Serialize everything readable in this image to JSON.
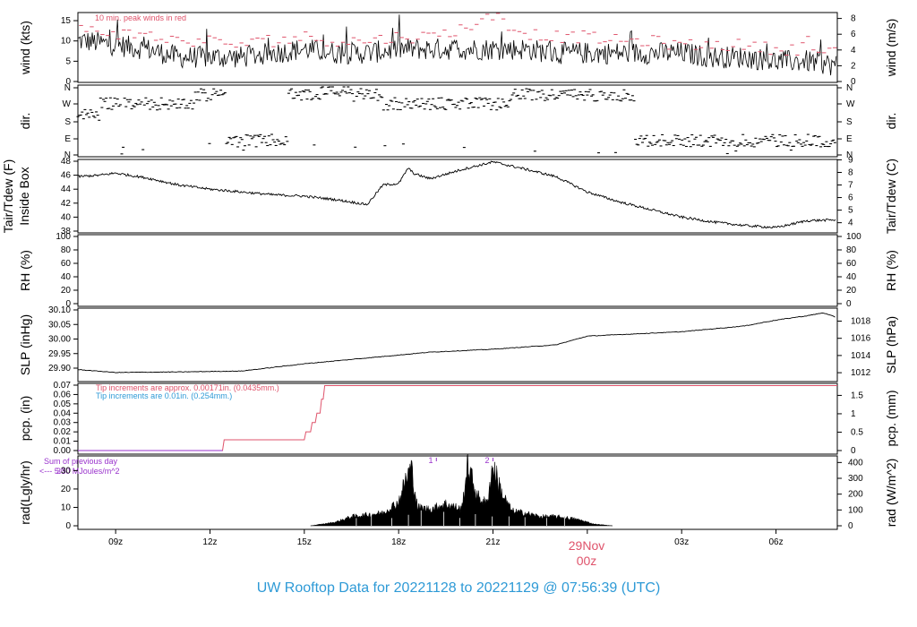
{
  "title": "UW Rooftop Data for 20221128  to  20221129 @ 07:56:39  (UTC)",
  "x_axis": {
    "ticks": [
      "09z",
      "12z",
      "15z",
      "18z",
      "21z",
      "00z",
      "03z",
      "06z"
    ],
    "date_label": "29Nov",
    "date_tick": "00z",
    "date_color": "#df536b"
  },
  "panels": {
    "wind": {
      "left_label": "wind (kts)",
      "right_label": "wind (m/s)",
      "note": "10 min. peak winds in red",
      "left_ticks": [
        "0",
        "5",
        "10",
        "15"
      ],
      "right_ticks": [
        "0",
        "2",
        "4",
        "6",
        "8"
      ]
    },
    "dir": {
      "left_label": "dir.",
      "right_label": "dir.",
      "ticks": [
        "N",
        "E",
        "S",
        "W",
        "N"
      ]
    },
    "temp": {
      "left_label_1": "Tair/Tdew (F)",
      "left_label_2": "Inside Box",
      "right_label": "Tair/Tdew (C)",
      "left_ticks": [
        "38",
        "40",
        "42",
        "44",
        "46",
        "48"
      ],
      "right_ticks": [
        "4",
        "5",
        "6",
        "7",
        "8",
        "9"
      ]
    },
    "rh": {
      "left_label": "RH (%)",
      "right_label": "RH (%)",
      "ticks": [
        "0",
        "20",
        "40",
        "60",
        "80",
        "100"
      ]
    },
    "slp": {
      "left_label": "SLP (inHg)",
      "right_label": "SLP (hPa)",
      "left_ticks": [
        "29.90",
        "29.95",
        "30.00",
        "30.05",
        "30.10"
      ],
      "right_ticks": [
        "1012",
        "1014",
        "1016",
        "1018"
      ]
    },
    "pcp": {
      "left_label": "pcp. (in)",
      "right_label": "pcp. (mm)",
      "note1": "Tip increments are approx. 0.00171in. (0.0435mm.)",
      "note2": "Tip increments are 0.01in. (0.254mm.)",
      "left_ticks": [
        "0.00",
        "0.01",
        "0.02",
        "0.03",
        "0.04",
        "0.05",
        "0.06",
        "0.07"
      ],
      "right_ticks": [
        "0",
        "0.5",
        "1",
        "1.5"
      ]
    },
    "rad": {
      "left_label": "rad(Lgly/hr)",
      "right_label": "rad (W/m^2)",
      "note1": "Sum of previous day",
      "note2": "<--- 5.30 MJoules/m^2",
      "note_overlap": "30",
      "left_ticks": [
        "0",
        "10",
        "20",
        "30"
      ],
      "right_ticks": [
        "0",
        "100",
        "200",
        "300",
        "400"
      ],
      "marker_1": "1",
      "marker_2": "2"
    }
  },
  "colors": {
    "line": "#000000",
    "peak_wind": "#df536b",
    "pcp_approx": "#df536b",
    "pcp_tip": "#2e9ad6",
    "rad_note": "#9932cc",
    "title": "#2e9ad6"
  },
  "chart_data": [
    {
      "type": "line",
      "title": "",
      "ylabel": "wind (kts)",
      "x_range_hours_utc": [
        7.8,
        31.95
      ],
      "ylim": [
        0,
        17
      ],
      "series": [
        {
          "name": "",
          "x": [
            8,
            9,
            10,
            11,
            12,
            13,
            14,
            15,
            16,
            17,
            18,
            19,
            20,
            21,
            22,
            23,
            24,
            25,
            26,
            27,
            28,
            29,
            30,
            31,
            31.9
          ],
          "values": [
            10,
            9,
            8,
            6,
            6,
            6,
            7,
            8,
            7,
            7,
            8,
            8,
            8,
            8,
            8,
            7,
            7,
            7,
            7,
            7,
            6,
            6,
            5,
            5,
            4
          ]
        },
        {
          "name": "10 min. peak winds in red",
          "x": [
            8,
            9,
            10,
            11,
            12,
            13,
            14,
            15,
            16,
            17,
            18,
            19,
            20,
            21,
            22,
            23,
            24,
            25,
            26,
            27,
            28,
            29,
            30,
            31,
            31.9
          ],
          "values": [
            13,
            12,
            11,
            10,
            10,
            9,
            10,
            11,
            10,
            10,
            11,
            11,
            13,
            16,
            12,
            11,
            11,
            10,
            10,
            9,
            9,
            9,
            8,
            8,
            7
          ]
        }
      ]
    },
    {
      "type": "scatter",
      "ylabel": "dir.",
      "ylim": [
        "N",
        "E",
        "S",
        "W",
        "N"
      ],
      "series": [
        {
          "name": "",
          "x": [
            8,
            9,
            10,
            11,
            12,
            13,
            14,
            15,
            16,
            17,
            18,
            19,
            20,
            21,
            22,
            23,
            24,
            25,
            26,
            27,
            28,
            29,
            30,
            31
          ],
          "values": [
            "SW",
            "W",
            "W",
            "W",
            "NW",
            "E",
            "E",
            "NW",
            "N",
            "NW",
            "W",
            "W",
            "W",
            "W",
            "NW",
            "NW",
            "NW",
            "NW",
            "E",
            "E",
            "E",
            "E",
            "E",
            "E"
          ]
        }
      ]
    },
    {
      "type": "line",
      "ylabel": "Tair/Tdew (F)",
      "ylim": [
        38,
        48
      ],
      "series": [
        {
          "name": "",
          "x": [
            7.8,
            8.5,
            9,
            10,
            11,
            12,
            13,
            14,
            15,
            16,
            17,
            17.5,
            18,
            18.3,
            18.5,
            19,
            20,
            21,
            22,
            23,
            24,
            25,
            26,
            27,
            28,
            29,
            30,
            31,
            31.9
          ],
          "values": [
            45.8,
            46.0,
            46.3,
            45.6,
            44.6,
            44.0,
            43.6,
            43.2,
            43.0,
            42.5,
            41.8,
            44.6,
            44.8,
            47.0,
            46.2,
            45.5,
            46.8,
            47.9,
            46.9,
            45.8,
            43.6,
            42.2,
            41.1,
            40.0,
            39.3,
            38.8,
            38.5,
            39.5,
            39.6
          ]
        }
      ]
    },
    {
      "type": "line",
      "ylabel": "RH (%)",
      "ylim": [
        0,
        100
      ],
      "series": []
    },
    {
      "type": "line",
      "ylabel": "SLP (inHg)",
      "ylim": [
        29.87,
        30.11
      ],
      "series": [
        {
          "name": "",
          "x": [
            7.8,
            9,
            11,
            13,
            15,
            17,
            19,
            21,
            23,
            24,
            25,
            27,
            29,
            30,
            31,
            31.5,
            31.9
          ],
          "values": [
            29.895,
            29.885,
            29.887,
            29.89,
            29.915,
            29.935,
            29.955,
            29.965,
            29.98,
            30.01,
            30.015,
            30.025,
            30.045,
            30.065,
            30.08,
            30.09,
            30.075
          ]
        }
      ]
    },
    {
      "type": "line",
      "ylabel": "pcp. (in)",
      "ylim": [
        0,
        0.07
      ],
      "series": [
        {
          "name": "Tip increments are approx. 0.00171in. (0.0435mm.)",
          "x": [
            7.8,
            12.4,
            12.45,
            15,
            15.05,
            15.2,
            15.25,
            15.35,
            15.4,
            15.5,
            15.55,
            15.6,
            15.65,
            31.95
          ],
          "values": [
            0,
            0,
            0.0115,
            0.0115,
            0.02,
            0.02,
            0.03,
            0.03,
            0.04,
            0.04,
            0.055,
            0.055,
            0.0695,
            0.0695
          ]
        }
      ]
    },
    {
      "type": "area",
      "ylabel": "rad(Lgly/hr)",
      "ylim": [
        0,
        37
      ],
      "series": [
        {
          "name": "",
          "x": [
            15.2,
            16.0,
            16.5,
            17.0,
            17.5,
            18.0,
            18.2,
            18.4,
            18.6,
            19.0,
            19.5,
            20.0,
            20.2,
            20.5,
            20.8,
            21.0,
            21.3,
            21.6,
            22.0,
            22.5,
            23.0,
            23.5,
            23.8,
            24.2,
            24.8
          ],
          "values": [
            0,
            2,
            5,
            6,
            7,
            13,
            24,
            32,
            10,
            9,
            12,
            9,
            33,
            16,
            12,
            33,
            17,
            8,
            7,
            5,
            5,
            4,
            3,
            1,
            0
          ]
        }
      ]
    }
  ]
}
